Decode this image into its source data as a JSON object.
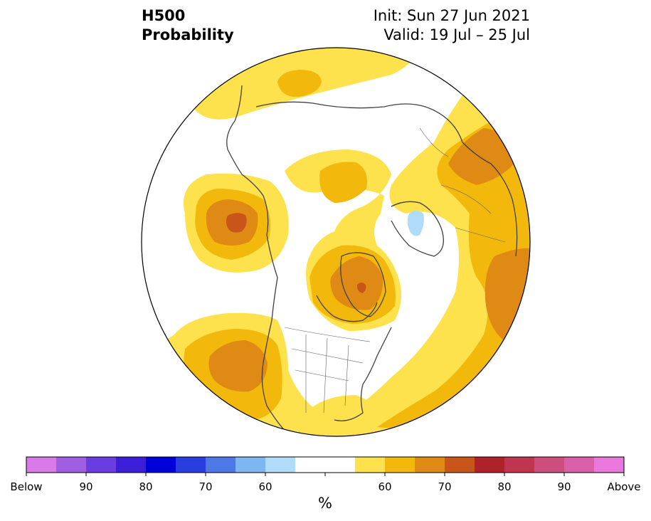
{
  "header": {
    "title_line1": "H500",
    "title_line2": "Probability",
    "init_text": "Init: Sun 27 Jun 2021",
    "valid_text": "Valid: 19 Jul – 25 Jul"
  },
  "colorbar": {
    "colors": [
      "#d87be8",
      "#a05ee0",
      "#6a3de0",
      "#3a1ed8",
      "#0000d8",
      "#2a3ee0",
      "#4e78e6",
      "#7eb6f2",
      "#b0dcfa",
      "#ffffff",
      "#ffffff",
      "#fde24e",
      "#f2b80c",
      "#de8a14",
      "#c8561a",
      "#b0222a",
      "#c03450",
      "#cc4e7c",
      "#d860a8",
      "#e878dc"
    ],
    "labels": [
      "Below",
      "90",
      "80",
      "70",
      "60",
      "",
      "60",
      "70",
      "80",
      "90",
      "Above"
    ],
    "unit": "%"
  },
  "palette": {
    "prob_50": "#fde24e",
    "prob_60": "#f2b80c",
    "prob_70": "#de8a14",
    "prob_80": "#c8561a",
    "prob_90": "#b0222a",
    "below_60": "#b0dcfa",
    "neutral": "#ffffff",
    "coast": "#404040"
  }
}
